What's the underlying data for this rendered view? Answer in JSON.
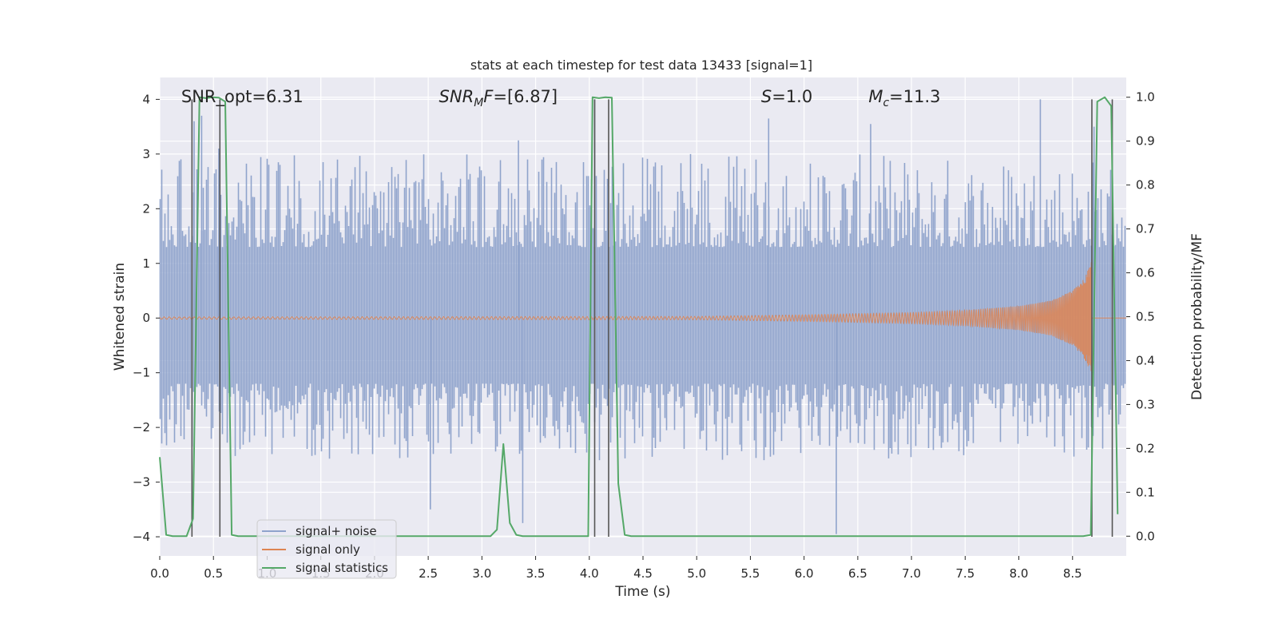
{
  "chart_data": {
    "type": "line",
    "title": "stats at each timestep for test data 13433 [signal=1]",
    "xlabel": "Time (s)",
    "ylabel": "Whitened strain",
    "ylabel_right": "Detection probability/MF",
    "xlim": [
      0.0,
      9.0
    ],
    "ylim": [
      -4.35,
      4.4
    ],
    "ylim_right": [
      -0.045,
      1.045
    ],
    "x_ticks": [
      "0.0",
      "0.5",
      "1.0",
      "1.5",
      "2.0",
      "2.5",
      "3.0",
      "3.5",
      "4.0",
      "4.5",
      "5.0",
      "5.5",
      "6.0",
      "6.5",
      "7.0",
      "7.5",
      "8.0",
      "8.5"
    ],
    "y_ticks": [
      "-4",
      "-3",
      "-2",
      "-1",
      "0",
      "1",
      "2",
      "3",
      "4"
    ],
    "y_ticks_right": [
      "0.0",
      "0.1",
      "0.2",
      "0.3",
      "0.4",
      "0.5",
      "0.6",
      "0.7",
      "0.8",
      "0.9",
      "1.0"
    ],
    "grid": true,
    "legend_position": "lower-left",
    "annotations": [
      {
        "parts": [
          {
            "t": "SNR_opt=6.31",
            "i": false
          }
        ],
        "x": 0.2
      },
      {
        "parts": [
          {
            "t": "SNR",
            "i": true
          },
          {
            "t": "M",
            "i": true,
            "sub": true
          },
          {
            "t": "F",
            "i": true
          },
          {
            "t": "=[6.87]",
            "i": false
          }
        ],
        "x": 2.6
      },
      {
        "parts": [
          {
            "t": "S",
            "i": true
          },
          {
            "t": "=1.0",
            "i": false
          }
        ],
        "x": 5.6
      },
      {
        "parts": [
          {
            "t": "M",
            "i": true
          },
          {
            "t": "c",
            "i": true,
            "sub": true
          },
          {
            "t": "=11.3",
            "i": false
          }
        ],
        "x": 6.6
      }
    ],
    "annotation_y": 4.05,
    "series": [
      {
        "name": "signal+ noise",
        "color": "#8fa3cc",
        "description": "whitened noisy strain, dense band roughly within -2.5..3 with spikes to about +/-4",
        "envelope_upper_range": [
          1.3,
          3.0
        ],
        "envelope_lower_range": [
          -2.6,
          -1.2
        ],
        "peaks": [
          {
            "x": 0.32,
            "y": 3.6
          },
          {
            "x": 0.39,
            "y": 3.7
          },
          {
            "x": 0.55,
            "y": 3.1
          },
          {
            "x": 2.52,
            "y": -3.5
          },
          {
            "x": 3.34,
            "y": 3.25
          },
          {
            "x": 3.38,
            "y": -3.75
          },
          {
            "x": 4.05,
            "y": 4.0
          },
          {
            "x": 5.67,
            "y": 3.65
          },
          {
            "x": 6.3,
            "y": -3.95
          },
          {
            "x": 6.62,
            "y": 3.55
          },
          {
            "x": 8.2,
            "y": 4.0
          },
          {
            "x": 8.7,
            "y": 3.5
          }
        ]
      },
      {
        "name": "signal only",
        "color": "#dd8452",
        "description": "chirp signal whose amplitude grows toward merger near t=8.68 s",
        "amplitude": [
          [
            0.0,
            0.02
          ],
          [
            5.0,
            0.03
          ],
          [
            6.0,
            0.06
          ],
          [
            7.0,
            0.1
          ],
          [
            7.5,
            0.14
          ],
          [
            8.0,
            0.22
          ],
          [
            8.3,
            0.32
          ],
          [
            8.5,
            0.5
          ],
          [
            8.6,
            0.7
          ],
          [
            8.66,
            0.95
          ],
          [
            8.68,
            1.1
          ],
          [
            8.69,
            0.0
          ]
        ]
      },
      {
        "name": "signal statistics",
        "color": "#55a868",
        "axis": "right",
        "x": [
          0.0,
          0.06,
          0.12,
          0.19,
          0.25,
          0.31,
          0.37,
          0.43,
          0.49,
          0.55,
          0.61,
          0.67,
          0.73,
          2.9,
          3.08,
          3.14,
          3.2,
          3.26,
          3.32,
          3.38,
          3.45,
          3.99,
          4.03,
          4.09,
          4.15,
          4.21,
          4.27,
          4.33,
          4.39,
          4.45,
          8.6,
          8.67,
          8.73,
          8.8,
          8.86,
          8.92
        ],
        "y": [
          0.18,
          0.003,
          0.0,
          0.0,
          0.0,
          0.04,
          1.0,
          0.998,
          1.0,
          0.999,
          0.99,
          0.003,
          0.0,
          0.0,
          0.0,
          0.015,
          0.21,
          0.03,
          0.003,
          0.0,
          0.0,
          0.0,
          1.0,
          0.998,
          1.0,
          0.999,
          0.12,
          0.003,
          0.0,
          0.0,
          0.0,
          0.003,
          0.99,
          1.0,
          0.98,
          0.05
        ]
      }
    ],
    "vertical_lines_x": [
      0.3,
      0.56,
      4.05,
      4.18,
      8.68,
      8.87
    ]
  }
}
